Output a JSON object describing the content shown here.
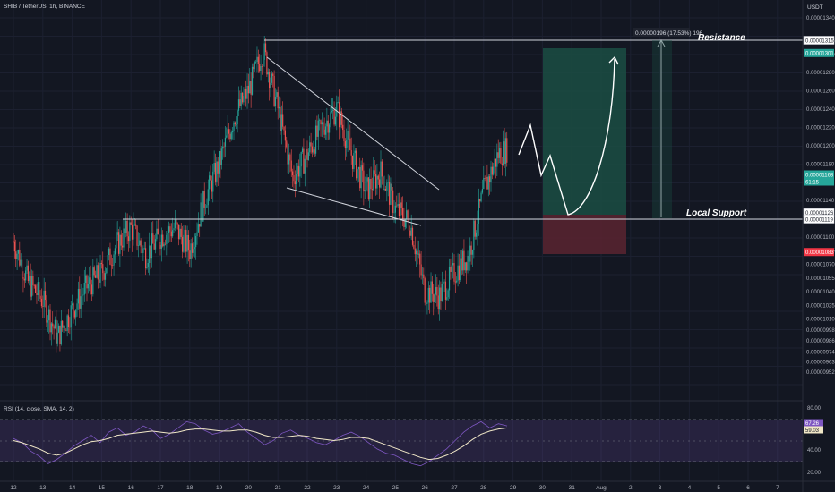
{
  "header": {
    "symbol_title": "SHIB / TetherUS, 1h, BINANCE",
    "currency": "USDT"
  },
  "colors": {
    "background": "#131722",
    "grid": "#1c2030",
    "up": "#26a69a",
    "down": "#ef5350",
    "line": "#d1d4dc",
    "rsi_line": "#7e57c2",
    "rsi_ma": "#f0e7c7",
    "target_zone": "#1b4d43",
    "stop_zone": "#5a2430",
    "price_badge_up": "#26a69a",
    "price_badge_down": "#f23645"
  },
  "chart_data": [
    {
      "type": "candlestick",
      "title": "SHIB / TetherUS, 1h, BINANCE",
      "price_axis": {
        "unit": "USDT",
        "ylim": [
          9.4e-06,
          1.36e-05
        ],
        "tick_labels": [
          "0.00001340",
          "0.00001315",
          "0.00001300",
          "0.00001280",
          "0.00001260",
          "0.00001240",
          "0.00001220",
          "0.00001200",
          "0.00001180",
          "0.00001160",
          "0.00001140",
          "0.00001120",
          "0.00001119",
          "0.00001100",
          "0.00001085",
          "0.00001070",
          "0.00001055",
          "0.00001040",
          "0.00001025",
          "0.00001010",
          "0.00000998",
          "0.00000986",
          "0.00000974",
          "0.00000963",
          "0.00000952"
        ]
      },
      "time_axis": {
        "tick_labels": [
          "12",
          "13",
          "14",
          "15",
          "16",
          "17",
          "18",
          "19",
          "20",
          "21",
          "22",
          "23",
          "24",
          "25",
          "26",
          "27",
          "28",
          "29",
          "30",
          "31",
          "Aug",
          "2",
          "3",
          "4",
          "5",
          "6",
          "7"
        ]
      },
      "price_path": [
        [
          "12",
          1.095e-05
        ],
        [
          "12.5",
          1.05e-05
        ],
        [
          "13",
          1.03e-05
        ],
        [
          "13.5",
          9.9e-06
        ],
        [
          "14",
          1.02e-05
        ],
        [
          "14.5",
          1.045e-05
        ],
        [
          "15",
          1.06e-05
        ],
        [
          "15.5",
          1.09e-05
        ],
        [
          "16",
          1.11e-05
        ],
        [
          "16.5",
          1.08e-05
        ],
        [
          "17",
          1.1e-05
        ],
        [
          "17.5",
          1.11e-05
        ],
        [
          "18",
          1.085e-05
        ],
        [
          "18.5",
          1.14e-05
        ],
        [
          "19",
          1.18e-05
        ],
        [
          "19.5",
          1.23e-05
        ],
        [
          "20",
          1.26e-05
        ],
        [
          "20.5",
          1.305e-05
        ],
        [
          "21",
          1.24e-05
        ],
        [
          "21.5",
          1.165e-05
        ],
        [
          "22",
          1.19e-05
        ],
        [
          "22.5",
          1.22e-05
        ],
        [
          "23",
          1.24e-05
        ],
        [
          "23.5",
          1.19e-05
        ],
        [
          "24",
          1.15e-05
        ],
        [
          "24.5",
          1.17e-05
        ],
        [
          "25",
          1.13e-05
        ],
        [
          "25.5",
          1.115e-05
        ],
        [
          "26",
          1.04e-05
        ],
        [
          "26.5",
          1.035e-05
        ],
        [
          "27",
          1.06e-05
        ],
        [
          "27.5",
          1.08e-05
        ],
        [
          "28",
          1.15e-05
        ],
        [
          "28.5",
          1.19e-05
        ],
        [
          "29",
          1.2e-05
        ]
      ],
      "price_badges": [
        {
          "label": "0.00001315",
          "style": "outline"
        },
        {
          "label": "0.00001301",
          "style": "up"
        },
        {
          "label": "0.00001168",
          "style": "up"
        },
        {
          "label": "61:15",
          "style": "up"
        },
        {
          "label": "0.00001126",
          "style": "outline"
        },
        {
          "label": "0.00001119",
          "style": "outline"
        },
        {
          "label": "0.00001083",
          "style": "down"
        }
      ],
      "annotations": [
        {
          "text": "Resistance",
          "price": 1.315e-05
        },
        {
          "text": "Local Support",
          "price": 1.119e-05
        },
        {
          "text": "0.00000196 (17.53%) 196",
          "type": "measure-label"
        }
      ]
    },
    {
      "type": "line",
      "title": "RSI (14, close, SMA, 14, 2)",
      "ylim": [
        20,
        85
      ],
      "tick_labels": [
        "80.00",
        "40.00",
        "20.00"
      ],
      "badges": [
        "67.26",
        "59.03"
      ],
      "series": [
        {
          "values": [
            52,
            48,
            40,
            35,
            28,
            32,
            38,
            45,
            50,
            55,
            48,
            58,
            62,
            55,
            58,
            64,
            60,
            52,
            56,
            62,
            68,
            66,
            60,
            56,
            58,
            62,
            66,
            58,
            52,
            46,
            50,
            57,
            60,
            55,
            52,
            48,
            46,
            50,
            55,
            58,
            54,
            48,
            42,
            38,
            36,
            32,
            28,
            26,
            30,
            36,
            42,
            50,
            58,
            64,
            68,
            62,
            66,
            64
          ]
        },
        {
          "values": [
            50,
            48,
            45,
            42,
            38,
            36,
            38,
            42,
            46,
            49,
            50,
            52,
            55,
            56,
            57,
            58,
            59,
            58,
            57,
            58,
            60,
            61,
            61,
            60,
            59,
            59,
            60,
            60,
            58,
            55,
            53,
            53,
            54,
            55,
            54,
            52,
            51,
            50,
            51,
            53,
            53,
            52,
            49,
            46,
            43,
            40,
            37,
            34,
            32,
            33,
            36,
            40,
            45,
            51,
            56,
            59,
            61,
            62
          ]
        }
      ]
    }
  ]
}
